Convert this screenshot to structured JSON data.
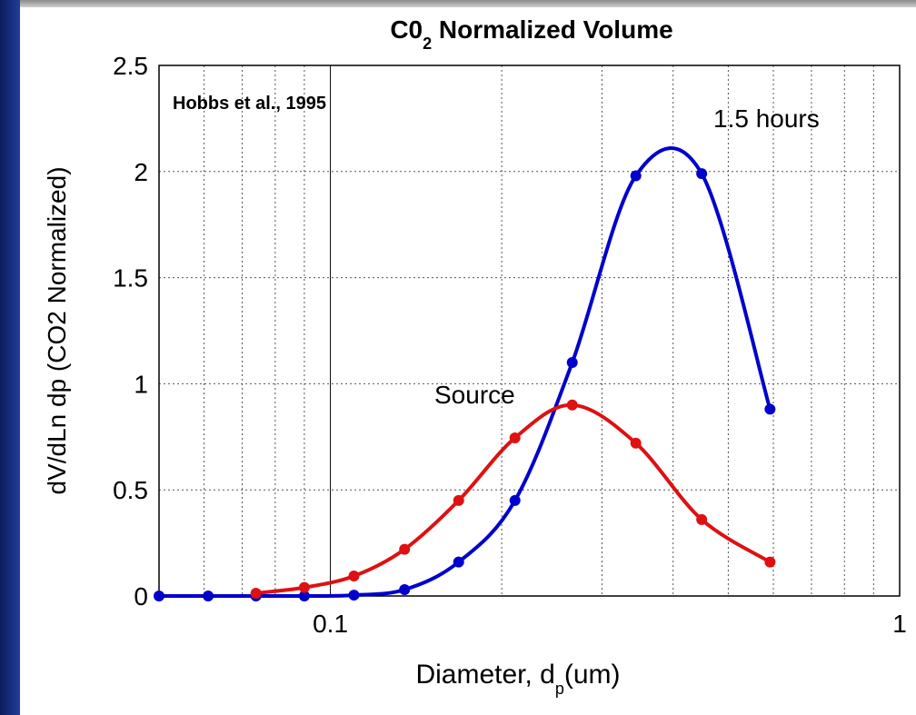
{
  "chart_data": {
    "type": "line",
    "title": {
      "main": "C0",
      "sub": "2",
      "rest": " Normalized Volume"
    },
    "x_label": {
      "main": "Diameter, d",
      "sub": "p",
      "rest": "(um)"
    },
    "y_label": "dV/dLn dp (CO2 Normalized)",
    "annotations": [
      "Hobbs et al., 1995",
      "1.5 hours",
      "Source"
    ],
    "xscale": "log",
    "xlim": [
      0.05,
      1
    ],
    "xticks": [
      0.1,
      1
    ],
    "xminorticks": [
      0.05,
      0.06,
      0.07,
      0.08,
      0.09,
      0.2,
      0.3,
      0.4,
      0.5,
      0.6,
      0.7,
      0.8,
      0.9
    ],
    "ylim": [
      0,
      2.5
    ],
    "yticks": [
      0,
      0.5,
      1,
      1.5,
      2,
      2.5
    ],
    "grid": true,
    "series": [
      {
        "name": "1.5 hours",
        "color": "#0000cc",
        "x": [
          0.05,
          0.061,
          0.074,
          0.09,
          0.11,
          0.135,
          0.168,
          0.211,
          0.266,
          0.344,
          0.449,
          0.592
        ],
        "values": [
          0,
          0,
          0,
          0,
          0.004,
          0.03,
          0.16,
          0.45,
          1.1,
          1.98,
          1.99,
          0.88
        ]
      },
      {
        "name": "Source",
        "color": "#dd1111",
        "x": [
          0.074,
          0.09,
          0.11,
          0.135,
          0.168,
          0.211,
          0.266,
          0.344,
          0.449,
          0.592
        ],
        "values": [
          0.013,
          0.04,
          0.094,
          0.22,
          0.45,
          0.745,
          0.9,
          0.72,
          0.36,
          0.16
        ]
      }
    ]
  }
}
